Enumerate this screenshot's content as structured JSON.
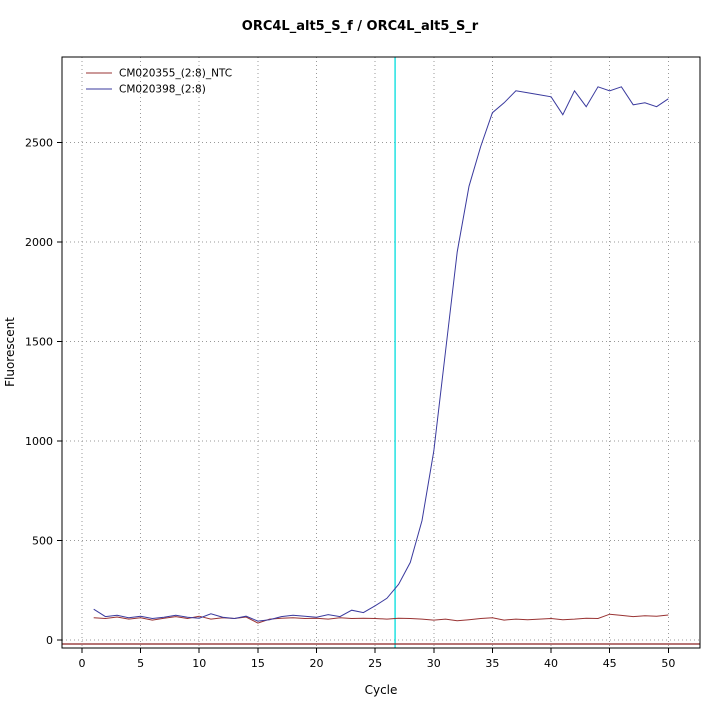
{
  "chart_data": {
    "type": "line",
    "title": "ORC4L_alt5_S_f / ORC4L_alt5_S_r",
    "xlabel": "Cycle",
    "ylabel": "Fluorescent",
    "xlim": [
      -1.7,
      52.7
    ],
    "ylim": [
      -40,
      2930
    ],
    "x_ticks": [
      0,
      5,
      10,
      15,
      20,
      25,
      30,
      35,
      40,
      45,
      50
    ],
    "y_ticks": [
      0,
      500,
      1000,
      1500,
      2000,
      2500
    ],
    "grid": true,
    "grid_style": "dotted",
    "legend_position": "top-left",
    "x": [
      1,
      2,
      3,
      4,
      5,
      6,
      7,
      8,
      9,
      10,
      11,
      12,
      13,
      14,
      15,
      16,
      17,
      18,
      19,
      20,
      21,
      22,
      23,
      24,
      25,
      26,
      27,
      28,
      29,
      30,
      31,
      32,
      33,
      34,
      35,
      36,
      37,
      38,
      39,
      40,
      41,
      42,
      43,
      44,
      45,
      46,
      47,
      48,
      49,
      50
    ],
    "series": [
      {
        "name": "CM020355_(2:8)_NTC",
        "color": "#993333",
        "values": [
          112,
          108,
          116,
          105,
          112,
          100,
          110,
          118,
          108,
          120,
          105,
          112,
          108,
          116,
          85,
          105,
          110,
          112,
          108,
          110,
          105,
          112,
          108,
          110,
          108,
          105,
          110,
          108,
          105,
          100,
          105,
          97,
          102,
          108,
          112,
          100,
          105,
          102,
          105,
          108,
          102,
          105,
          110,
          108,
          130,
          124,
          118,
          122,
          120,
          126
        ]
      },
      {
        "name": "CM020398_(2:8)",
        "color": "#3a3a9e",
        "values": [
          155,
          118,
          125,
          112,
          120,
          108,
          115,
          125,
          115,
          110,
          132,
          115,
          108,
          120,
          95,
          102,
          118,
          125,
          120,
          115,
          128,
          118,
          150,
          138,
          172,
          210,
          280,
          390,
          600,
          950,
          1450,
          1950,
          2280,
          2480,
          2650,
          2700,
          2760,
          2750,
          2740,
          2730,
          2640,
          2760,
          2680,
          2780,
          2760,
          2780,
          2690,
          2700,
          2680,
          2720
        ]
      }
    ],
    "ct_line": {
      "x": 26.7,
      "color": "#00dddd"
    },
    "threshold_line": {
      "y": -20,
      "color": "#8b2222"
    },
    "colors": {
      "grid": "#999999",
      "axis": "#000000",
      "background": "#ffffff"
    }
  }
}
